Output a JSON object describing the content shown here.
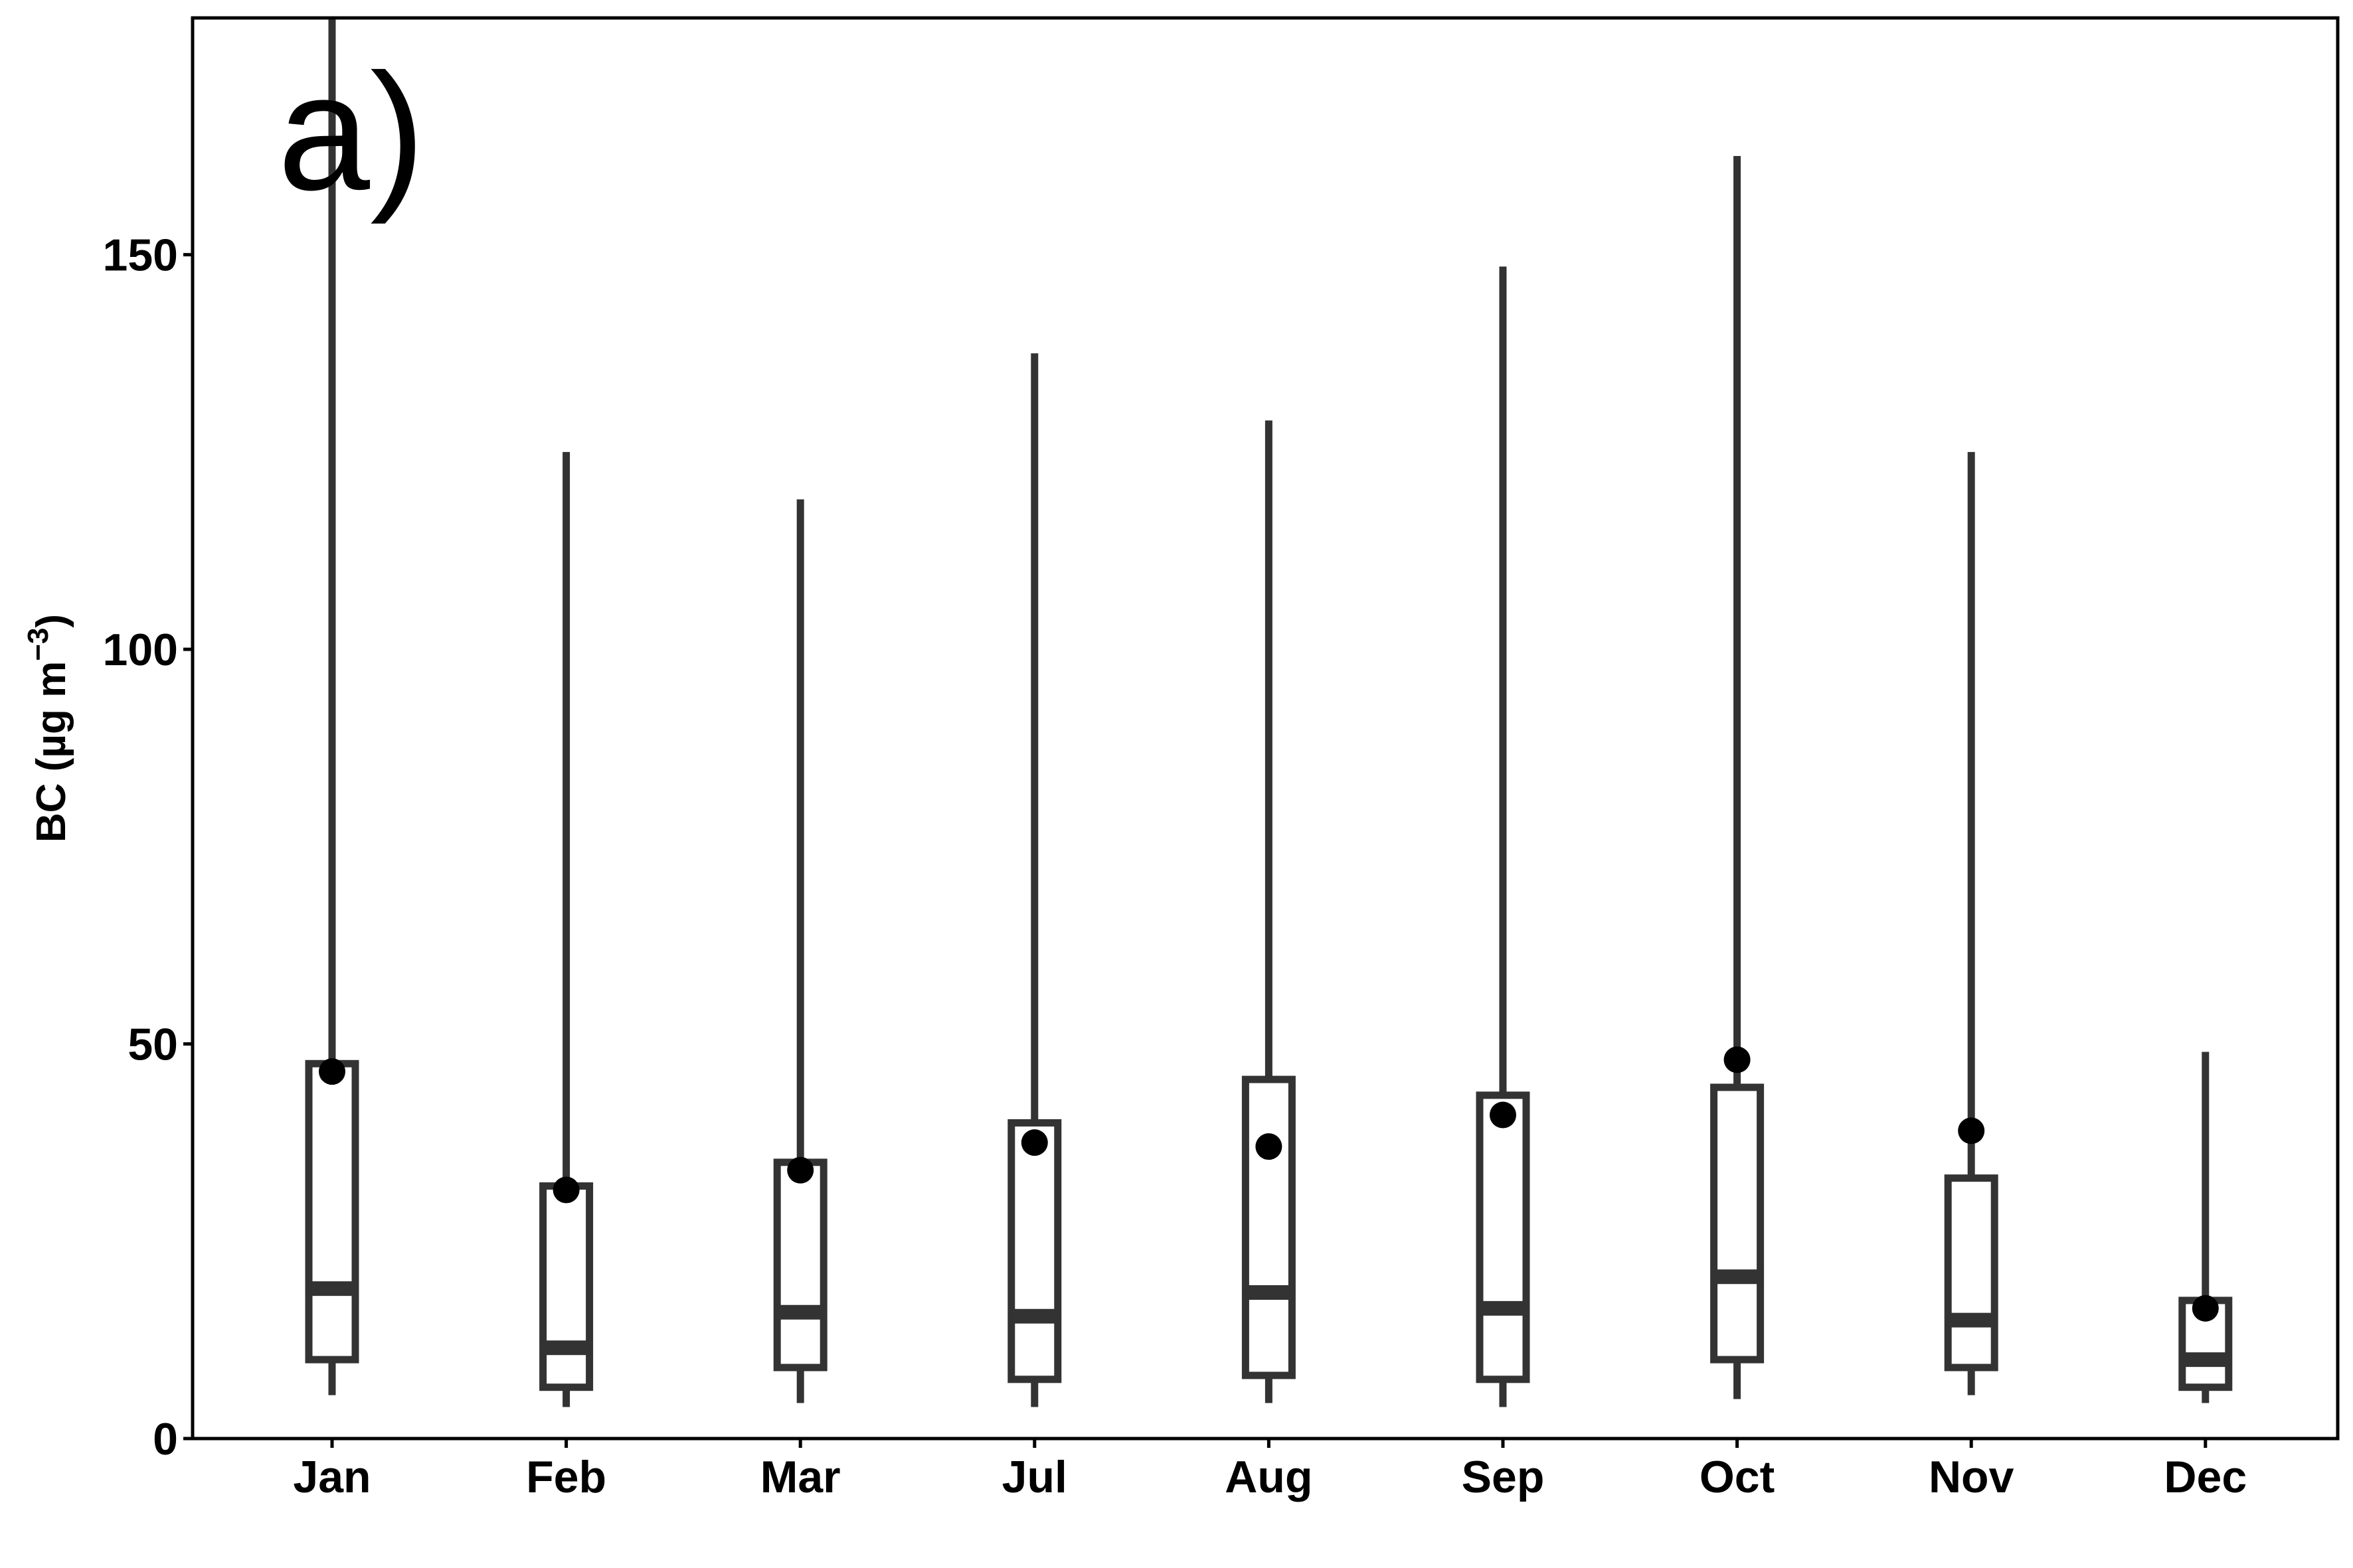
{
  "panel_label": "a)",
  "chart_data": {
    "type": "box",
    "title": "",
    "xlabel": "",
    "ylabel": {
      "main": "BC (µg m",
      "superscript": "−3",
      "close": ")"
    },
    "ylim": [
      0,
      180
    ],
    "yticks": [
      0,
      50,
      100,
      150
    ],
    "ytick_labels": [
      "0",
      "50",
      "100",
      "150"
    ],
    "grid": false,
    "colors": {
      "box_stroke": "#333333",
      "mean_point": "#000000",
      "frame": "#000000"
    },
    "categories": [
      "Jan",
      "Feb",
      "Mar",
      "Jul",
      "Aug",
      "Sep",
      "Oct",
      "Nov",
      "Dec"
    ],
    "series": [
      {
        "category": "Jan",
        "whisker_low": 5.5,
        "q1": 10,
        "median": 19,
        "q3": 47.5,
        "whisker_high": 180,
        "mean": 46.5
      },
      {
        "category": "Feb",
        "whisker_low": 4,
        "q1": 6.5,
        "median": 11.5,
        "q3": 32,
        "whisker_high": 125,
        "mean": 31.5
      },
      {
        "category": "Mar",
        "whisker_low": 4.5,
        "q1": 9,
        "median": 16,
        "q3": 35,
        "whisker_high": 119,
        "mean": 34
      },
      {
        "category": "Jul",
        "whisker_low": 4,
        "q1": 7.5,
        "median": 15.5,
        "q3": 40,
        "whisker_high": 137.5,
        "mean": 37.5
      },
      {
        "category": "Aug",
        "whisker_low": 4.5,
        "q1": 8,
        "median": 18.5,
        "q3": 45.5,
        "whisker_high": 129,
        "mean": 37
      },
      {
        "category": "Sep",
        "whisker_low": 4,
        "q1": 7.5,
        "median": 16.5,
        "q3": 43.5,
        "whisker_high": 148.5,
        "mean": 41
      },
      {
        "category": "Oct",
        "whisker_low": 5,
        "q1": 10,
        "median": 20.5,
        "q3": 44.5,
        "whisker_high": 162.5,
        "mean": 48
      },
      {
        "category": "Nov",
        "whisker_low": 5.5,
        "q1": 9,
        "median": 15,
        "q3": 33,
        "whisker_high": 125,
        "mean": 39
      },
      {
        "category": "Dec",
        "whisker_low": 4.5,
        "q1": 6.5,
        "median": 10,
        "q3": 17.5,
        "whisker_high": 49,
        "mean": 16.5
      }
    ]
  }
}
